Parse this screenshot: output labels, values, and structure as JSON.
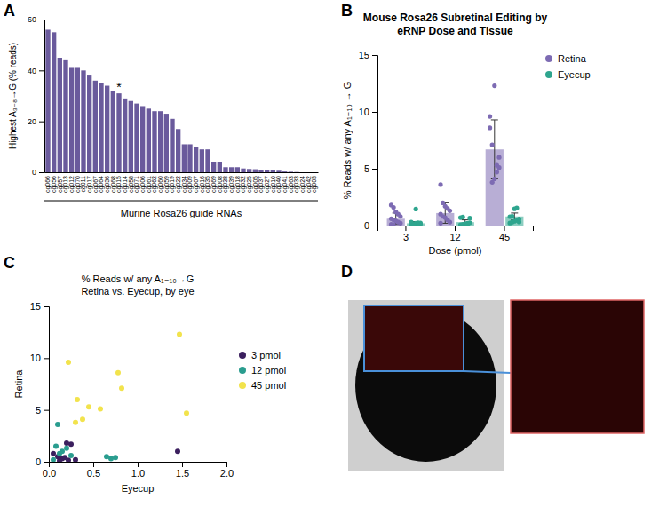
{
  "chart_data": [
    {
      "type": "bar",
      "panel": "A",
      "y_label": "Highest A₃₋₈→G (% reads)",
      "x_label": "Murine Rosa26 guide RNAs",
      "categories": [
        "cg066",
        "cg056",
        "cg057",
        "cg013",
        "cg012",
        "cg070",
        "cg011",
        "cg017",
        "cg067",
        "cg064",
        "cg036",
        "cg068",
        "cg015",
        "cg014",
        "cg058",
        "cg071",
        "cg006",
        "cg061",
        "cg062",
        "cg060",
        "cg059",
        "cg019",
        "cg022",
        "cg034",
        "cg009",
        "cg007",
        "cg016",
        "cg035",
        "cg069",
        "cg008",
        "cg038",
        "cg039",
        "cg018",
        "cg032",
        "cg025",
        "cg005",
        "cg037",
        "cg027",
        "cg010",
        "cg040",
        "cg041",
        "cg063",
        "cg033",
        "cg024",
        "cg042",
        "cg003"
      ],
      "values": [
        56,
        55,
        45,
        44,
        41,
        41,
        40,
        38,
        36,
        35,
        34,
        32,
        31,
        29,
        28,
        27,
        26,
        25,
        24,
        24,
        23,
        21,
        17,
        11,
        11,
        10,
        9,
        9,
        4,
        4,
        2,
        2,
        2,
        1.5,
        1.3,
        1.2,
        1.0,
        0.9,
        0.8,
        0.6,
        0.3,
        0.2,
        0.1,
        0,
        0,
        0
      ],
      "color": "#6a5a9c",
      "ylim": [
        0,
        60
      ],
      "yticks": [
        0,
        20,
        40,
        60
      ],
      "annotations": [
        {
          "text": "*",
          "category": "cg015"
        }
      ]
    },
    {
      "type": "bar",
      "panel": "B",
      "title": "Mouse Rosa26 Subretinal Editing by eRNP Dose and Tissue",
      "y_label": "% Reads w/ any A₁₋₁₀ → G",
      "x_label": "Dose (pmol)",
      "categories": [
        "3",
        "12",
        "45"
      ],
      "series": [
        {
          "name": "Retina",
          "color": "#7d6bb3",
          "values": [
            0.6,
            1.1,
            6.7
          ],
          "error": [
            0.5,
            0.9,
            2.6
          ],
          "points": [
            [
              1.8,
              1.6,
              1.2,
              1.0,
              0.8,
              0.6,
              0.5,
              0.4,
              0.3,
              0.2,
              0.1,
              0.05
            ],
            [
              3.6,
              2.0,
              1.7,
              1.5,
              1.3,
              1.0,
              0.8,
              0.7,
              0.5,
              0.3,
              0.2
            ],
            [
              9.6,
              3.8,
              4.1,
              5.3,
              5.1,
              8.6,
              7.1,
              12.3,
              4.7,
              6.0
            ]
          ]
        },
        {
          "name": "Eyecup",
          "color": "#2ea58e",
          "values": [
            0.2,
            0.3,
            0.8
          ],
          "error": [
            0.15,
            0.2,
            0.3
          ],
          "points": [
            [
              0.1,
              0.15,
              0.2,
              0.25,
              0.12,
              0.3,
              0.05,
              1.45,
              0.18,
              0.22
            ],
            [
              0.08,
              0.1,
              0.15,
              0.2,
              0.65,
              0.7,
              0.75,
              0.12,
              0.05,
              0.25
            ],
            [
              0.22,
              0.3,
              0.38,
              0.45,
              0.58,
              0.78,
              0.82,
              1.47,
              1.55,
              0.32
            ]
          ]
        }
      ],
      "ylim": [
        0,
        15
      ],
      "yticks": [
        0,
        5,
        10,
        15
      ],
      "legend": "right"
    },
    {
      "type": "scatter",
      "panel": "C",
      "title": "% Reads w/ any A₁₋₁₀→G",
      "subtitle": "Retina vs. Eyecup, by eye",
      "x_label": "Eyecup",
      "y_label": "Retina",
      "series": [
        {
          "name": "3 pmol",
          "color": "#3b1f5e",
          "x": [
            0.1,
            0.15,
            0.2,
            0.25,
            0.12,
            0.3,
            0.05,
            1.45,
            0.18,
            0.22
          ],
          "values": [
            0.5,
            0.3,
            1.8,
            1.7,
            0.1,
            0.2,
            0.8,
            1.0,
            0.4,
            0.15
          ]
        },
        {
          "name": "12 pmol",
          "color": "#2a9d8f",
          "x": [
            0.08,
            0.1,
            0.15,
            0.2,
            0.65,
            0.7,
            0.75,
            0.12,
            0.05,
            0.25
          ],
          "values": [
            1.5,
            3.6,
            1.0,
            1.3,
            0.5,
            0.3,
            0.4,
            0.8,
            0.2,
            0.6
          ]
        },
        {
          "name": "45 pmol",
          "color": "#f2e34c",
          "x": [
            0.22,
            0.3,
            0.38,
            0.45,
            0.58,
            0.78,
            0.82,
            1.47,
            1.55,
            0.32
          ],
          "values": [
            9.6,
            3.8,
            4.1,
            5.3,
            5.1,
            8.6,
            7.1,
            12.3,
            4.7,
            6.0
          ]
        }
      ],
      "xlim": [
        0,
        2
      ],
      "xticks": [
        {
          "value": 0,
          "label": "0.0"
        },
        {
          "value": 0.5,
          "label": "0.5"
        },
        {
          "value": 1,
          "label": "1.0"
        },
        {
          "value": 1.5,
          "label": "1.5"
        },
        {
          "value": 2,
          "label": "2.0"
        }
      ],
      "ylim": [
        0,
        15
      ],
      "yticks": [
        0,
        5,
        10,
        15
      ],
      "legend": "right"
    },
    {
      "type": "image",
      "panel": "D"
    }
  ]
}
